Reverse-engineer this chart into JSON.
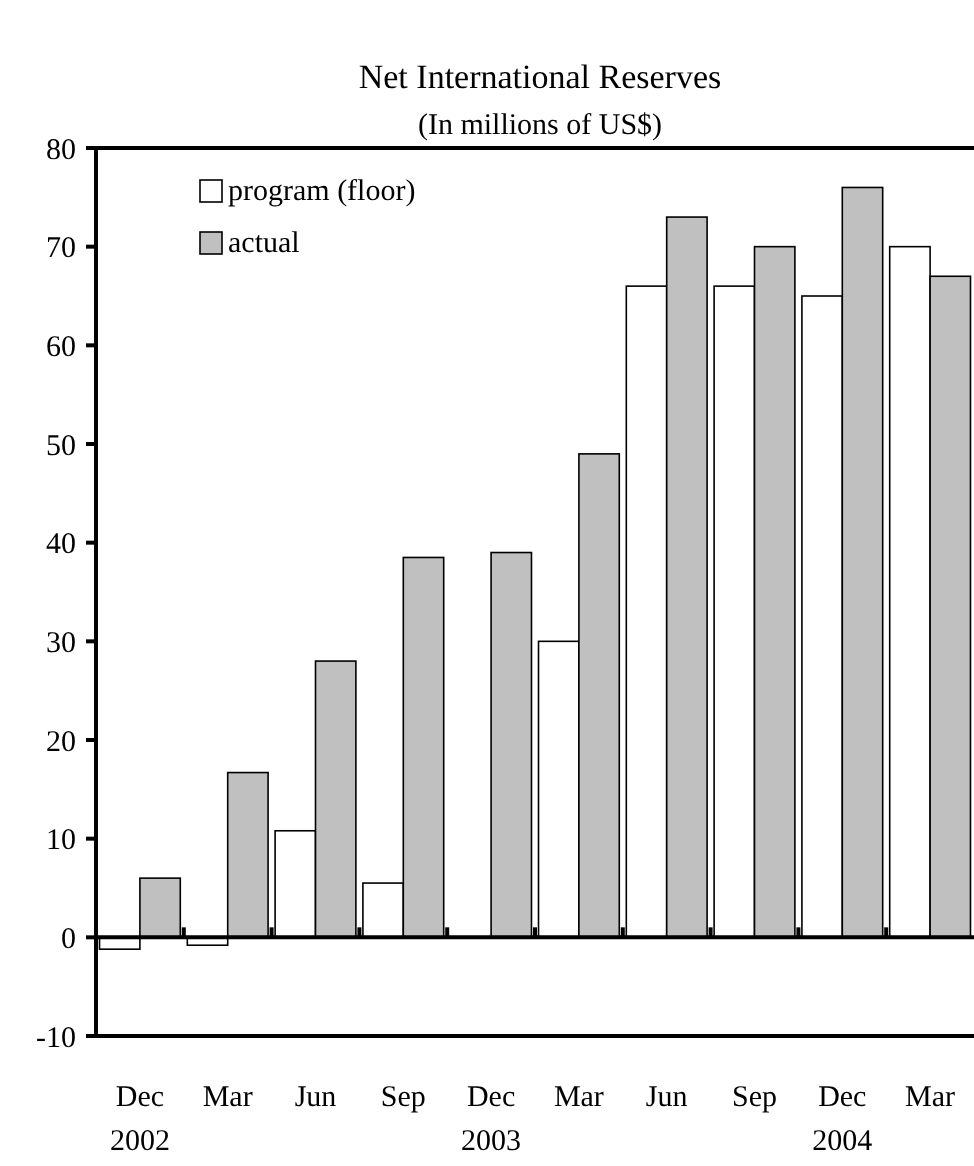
{
  "chart_data": {
    "type": "bar",
    "title": "Net International Reserves",
    "subtitle": "(In millions of US$)",
    "categories": [
      "Dec\n2002",
      "Mar",
      "Jun",
      "Sep",
      "Dec\n2003",
      "Mar",
      "Jun",
      "Sep",
      "Dec\n2004",
      "Mar"
    ],
    "series": [
      {
        "name": "program (floor)",
        "color": "#ffffff",
        "values": [
          -1.2,
          -0.8,
          10.8,
          5.5,
          null,
          30,
          66,
          66,
          65,
          70
        ]
      },
      {
        "name": "actual",
        "color": "#c0c0c0",
        "values": [
          6,
          16.7,
          28,
          38.5,
          39,
          49,
          73,
          70,
          76,
          67
        ]
      }
    ],
    "ylim": [
      -10,
      80
    ],
    "yticks": [
      -10,
      0,
      10,
      20,
      30,
      40,
      50,
      60,
      70,
      80
    ],
    "legend": "top left"
  }
}
